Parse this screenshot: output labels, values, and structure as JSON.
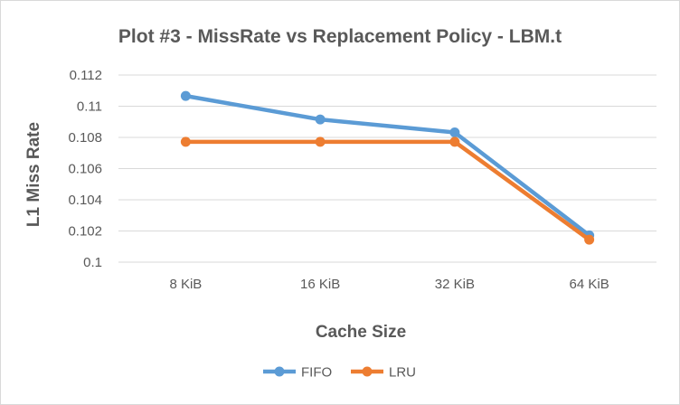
{
  "chart_data": {
    "type": "line",
    "title": "Plot #3 - MissRate vs Replacement Policy - LBM.t",
    "xlabel": "Cache Size",
    "ylabel": "L1 Miss Rate",
    "categories": [
      "8 KiB",
      "16 KiB",
      "32 KiB",
      "64 KiB"
    ],
    "ylim": [
      0.1,
      0.112
    ],
    "yticks": [
      "0.1",
      "0.102",
      "0.104",
      "0.106",
      "0.108",
      "0.11",
      "0.112"
    ],
    "grid": true,
    "legend_position": "bottom",
    "series": [
      {
        "name": "FIFO",
        "color": "#5b9bd5",
        "values": [
          0.11066,
          0.10915,
          0.10832,
          0.10172
        ]
      },
      {
        "name": "LRU",
        "color": "#ed7d31",
        "values": [
          0.10772,
          0.10772,
          0.10772,
          0.10144
        ]
      }
    ]
  }
}
